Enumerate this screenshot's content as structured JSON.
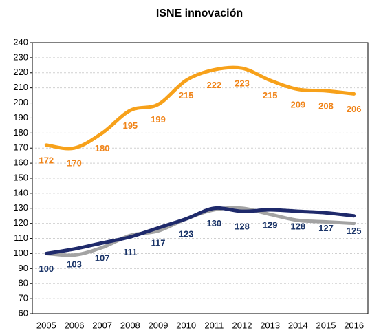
{
  "chart_data": {
    "type": "line",
    "title": "ISNE innovación",
    "categories": [
      "2005",
      "2006",
      "2007",
      "2008",
      "2009",
      "2010",
      "2011",
      "2012",
      "2013",
      "2014",
      "2015",
      "2016"
    ],
    "series": [
      {
        "color": "#f7a11a",
        "label_color": "#f08419",
        "values": [
          172,
          170,
          180,
          195,
          199,
          215,
          222,
          223,
          215,
          209,
          208,
          206
        ],
        "show_labels": true
      },
      {
        "color": "#1f2a6b",
        "label_color": "#1a3468",
        "values": [
          100,
          103,
          107,
          111,
          117,
          123,
          130,
          128,
          129,
          128,
          127,
          125
        ],
        "show_labels": true
      },
      {
        "color": "#a3a3a3",
        "values": [
          100,
          99,
          104,
          112,
          115,
          123,
          129,
          130,
          126,
          122,
          121,
          120
        ],
        "show_labels": false
      }
    ],
    "ylim": [
      60,
      240
    ],
    "yticks": [
      60,
      70,
      80,
      90,
      100,
      110,
      120,
      130,
      140,
      150,
      160,
      170,
      180,
      190,
      200,
      210,
      220,
      230,
      240
    ],
    "grid": true
  }
}
